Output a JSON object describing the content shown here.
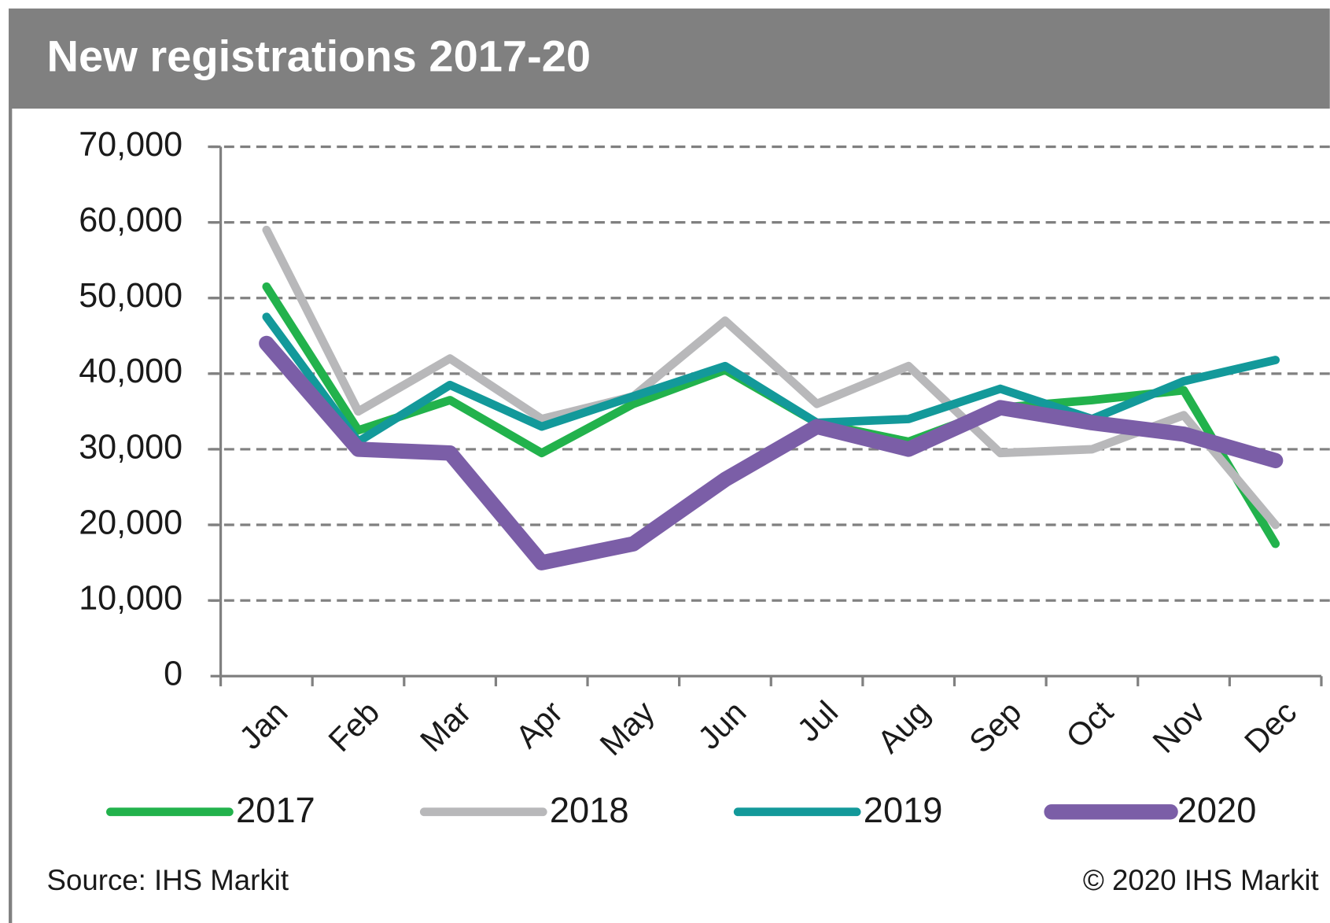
{
  "chart_data": {
    "type": "line",
    "title": "New registrations 2017-20",
    "categories": [
      "Jan",
      "Feb",
      "Mar",
      "Apr",
      "May",
      "Jun",
      "Jul",
      "Aug",
      "Sep",
      "Oct",
      "Nov",
      "Dec"
    ],
    "series": [
      {
        "name": "2017",
        "color": "#22b24c",
        "values": [
          51500,
          32500,
          36500,
          29500,
          36000,
          40500,
          33500,
          31000,
          35500,
          36500,
          37800,
          17500
        ]
      },
      {
        "name": "2018",
        "color": "#b8b8ba",
        "values": [
          59000,
          35000,
          42000,
          34000,
          37000,
          47000,
          36000,
          41000,
          29500,
          30000,
          34500,
          20000
        ]
      },
      {
        "name": "2019",
        "color": "#13999a",
        "values": [
          47500,
          31000,
          38500,
          33000,
          37000,
          41000,
          33500,
          34000,
          38000,
          34000,
          39000,
          41800
        ]
      },
      {
        "name": "2020",
        "color": "#7b5ea7",
        "values": [
          44000,
          30000,
          29500,
          15000,
          17500,
          26000,
          33000,
          30000,
          35500,
          33500,
          32000,
          28500
        ]
      }
    ],
    "ylim": [
      0,
      70000
    ],
    "yticks": [
      0,
      {
        "value": 10000,
        "label": "10,000"
      },
      {
        "value": 20000,
        "label": "20,000"
      },
      {
        "value": 30000,
        "label": "30,000"
      },
      {
        "value": 40000,
        "label": "40,000"
      },
      {
        "value": 50000,
        "label": "50,000"
      },
      {
        "value": 60000,
        "label": "60,000"
      },
      {
        "value": 70000,
        "label": "70,000"
      }
    ],
    "grid": true,
    "source": "Source:  IHS Markit",
    "copyright": "© 2020  IHS Markit"
  }
}
